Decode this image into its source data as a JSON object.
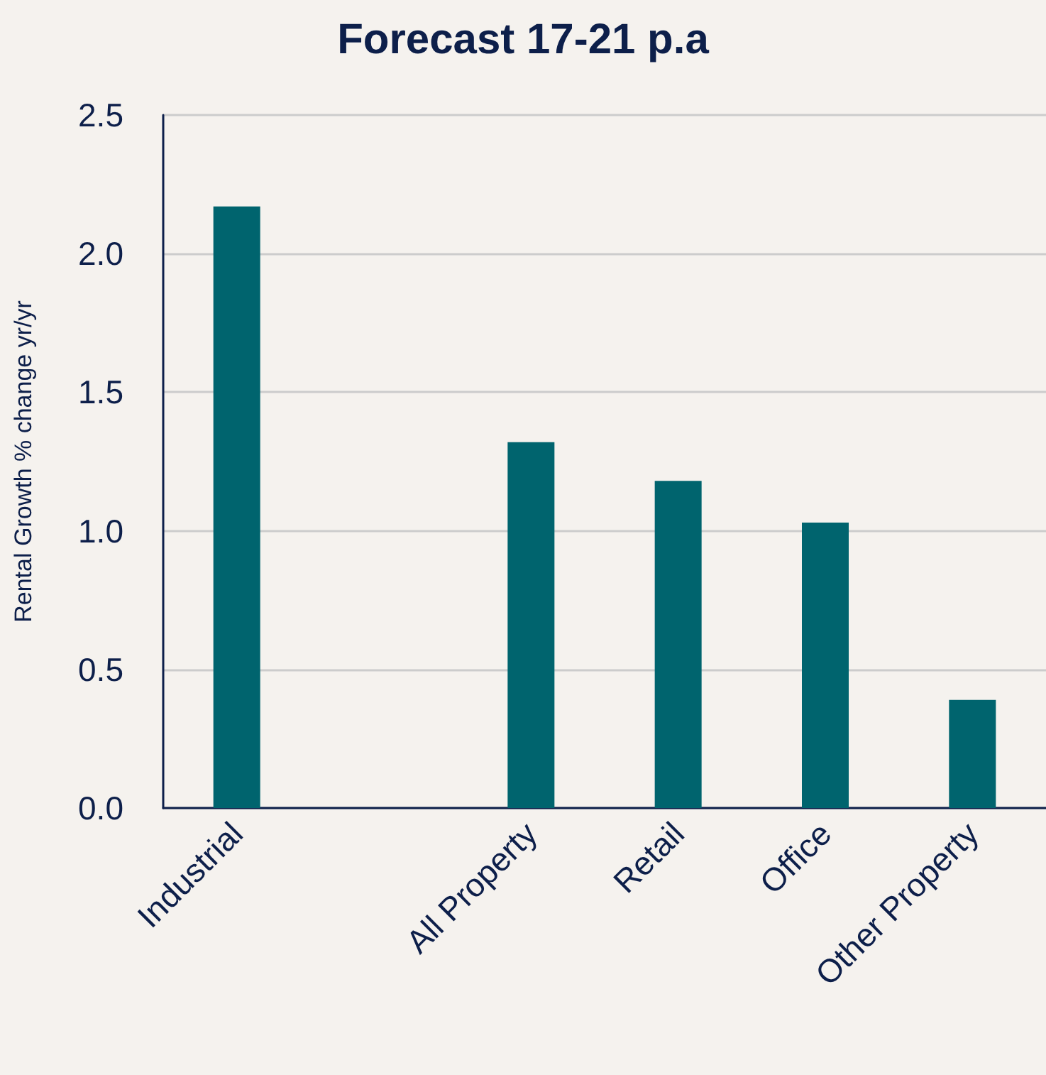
{
  "chart_data": {
    "type": "bar",
    "title": "Forecast 17-21 p.a",
    "ylabel": "Rental Growth % change yr/yr",
    "categories": [
      "Industrial",
      null,
      "All Property",
      "Retail",
      "Office",
      "Other Property"
    ],
    "values": [
      2.17,
      null,
      1.32,
      1.18,
      1.03,
      0.39
    ],
    "color": "#00646e",
    "ylim": [
      0,
      2.5
    ],
    "yticks": [
      {
        "value": 0,
        "label": "0.0"
      },
      0.5,
      {
        "value": 1,
        "label": "1.0"
      },
      1.5,
      {
        "value": 2,
        "label": "2.0"
      },
      2.5
    ],
    "grid": "y"
  }
}
